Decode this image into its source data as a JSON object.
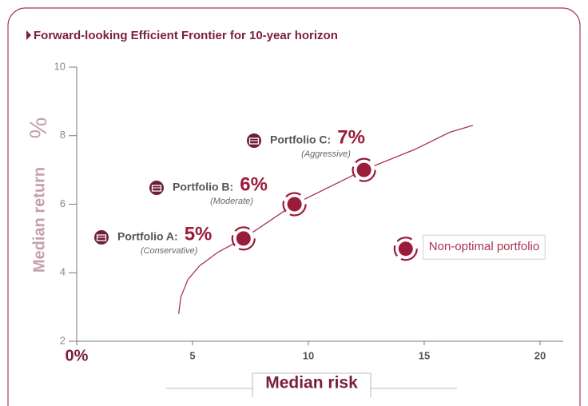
{
  "chart_data": {
    "type": "scatter",
    "title": "Forward-looking Efficient Frontier for 10-year horizon",
    "x_label": "Median risk",
    "y_label": "Median return",
    "y_unit": "%",
    "xlim": [
      0,
      21
    ],
    "ylim": [
      2,
      10
    ],
    "xticks": [
      {
        "value": 0,
        "label": "0%"
      },
      5,
      10,
      15,
      20
    ],
    "yticks": [
      2,
      4,
      6,
      8,
      10
    ],
    "frontier": {
      "color": "#a8324f",
      "x": [
        4.4,
        4.5,
        4.8,
        5.3,
        6.1,
        7.2,
        9.4,
        12.4,
        14.6,
        16.1,
        17.1
      ],
      "y": [
        2.8,
        3.3,
        3.8,
        4.2,
        4.6,
        5.0,
        6.0,
        7.0,
        7.6,
        8.1,
        8.3
      ]
    },
    "portfolios": [
      {
        "name": "Portfolio A:",
        "x": 7.2,
        "y": 5,
        "value_label": "5%",
        "note": "(Conservative)"
      },
      {
        "name": "Portfolio B:",
        "x": 9.4,
        "y": 6,
        "value_label": "6%",
        "note": "(Moderate)"
      },
      {
        "name": "Portfolio C:",
        "x": 12.4,
        "y": 7,
        "value_label": "7%",
        "note": "(Aggressive)"
      }
    ],
    "non_optimal": {
      "name": "Non-optimal portfolio",
      "x": 14.2,
      "y": 4.7
    },
    "color": "#9b1b3a"
  }
}
